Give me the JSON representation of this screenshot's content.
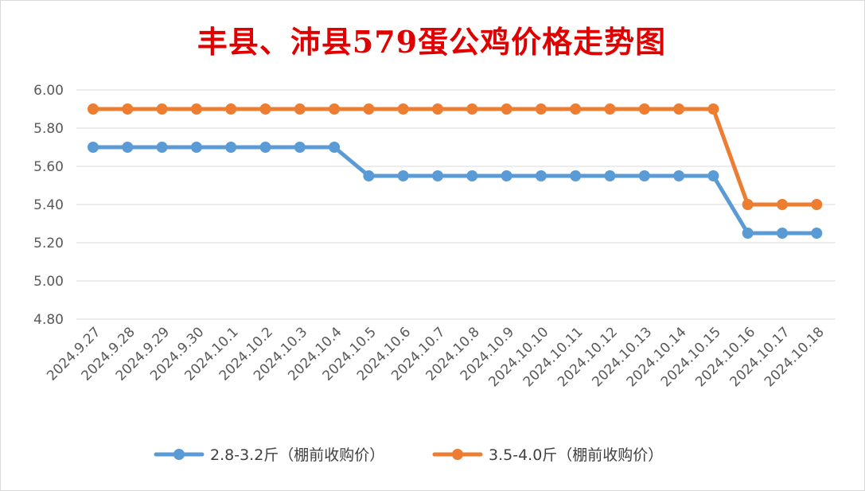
{
  "chart_data": {
    "type": "line",
    "title": "丰县、沛县579蛋公鸡价格走势图",
    "xlabel": "",
    "ylabel": "",
    "ylim": [
      4.8,
      6.0
    ],
    "yticks": [
      "6.00",
      "5.80",
      "5.60",
      "5.40",
      "5.20",
      "5.00",
      "4.80"
    ],
    "x": [
      "2024.9.27",
      "2024.9.28",
      "2024.9.29",
      "2024.9.30",
      "2024.10.1",
      "2024.10.2",
      "2024.10.3",
      "2024.10.4",
      "2024.10.5",
      "2024.10.6",
      "2024.10.7",
      "2024.10.8",
      "2024.10.9",
      "2024.10.10",
      "2024.10.11",
      "2024.10.12",
      "2024.10.13",
      "2024.10.14",
      "2024.10.15",
      "2024.10.16",
      "2024.10.17",
      "2024.10.18"
    ],
    "series": [
      {
        "name": "2.8-3.2斤（棚前收购价）",
        "color": "#5b9bd5",
        "values": [
          5.7,
          5.7,
          5.7,
          5.7,
          5.7,
          5.7,
          5.7,
          5.7,
          5.55,
          5.55,
          5.55,
          5.55,
          5.55,
          5.55,
          5.55,
          5.55,
          5.55,
          5.55,
          5.55,
          5.25,
          5.25,
          5.25
        ]
      },
      {
        "name": "3.5-4.0斤（棚前收购价）",
        "color": "#ed7d31",
        "values": [
          5.9,
          5.9,
          5.9,
          5.9,
          5.9,
          5.9,
          5.9,
          5.9,
          5.9,
          5.9,
          5.9,
          5.9,
          5.9,
          5.9,
          5.9,
          5.9,
          5.9,
          5.9,
          5.9,
          5.4,
          5.4,
          5.4
        ]
      }
    ],
    "grid": true,
    "legend": "bottom"
  }
}
